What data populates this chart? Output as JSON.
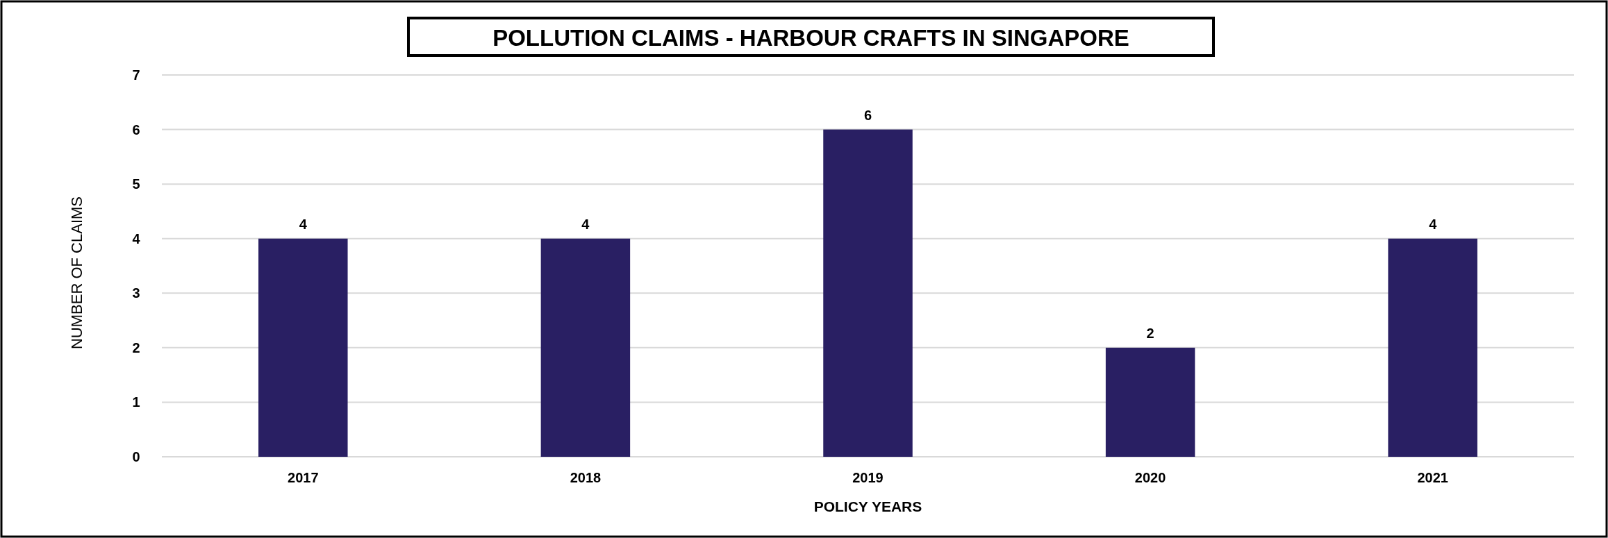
{
  "chart_data": {
    "type": "bar",
    "title": "POLLUTION CLAIMS - HARBOUR CRAFTS IN SINGAPORE",
    "xlabel": "POLICY YEARS",
    "ylabel": "NUMBER OF CLAIMS",
    "categories": [
      "2017",
      "2018",
      "2019",
      "2020",
      "2021"
    ],
    "values": [
      4,
      4,
      6,
      2,
      4
    ],
    "color": "#291f63",
    "ylim": [
      0,
      7
    ],
    "yticks": [
      0,
      1,
      2,
      3,
      4,
      5,
      6,
      7
    ],
    "grid": "y",
    "data_labels": true
  }
}
